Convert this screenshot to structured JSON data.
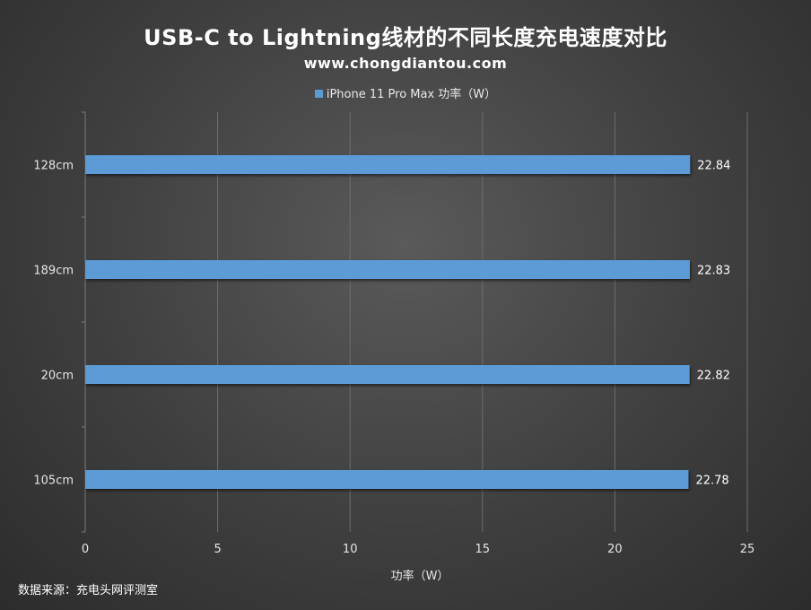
{
  "chart_data": {
    "type": "bar",
    "orientation": "horizontal",
    "title": "USB-C to Lightning线材的不同长度充电速度对比",
    "subtitle": "www.chongdiantou.com",
    "categories": [
      "128cm",
      "189cm",
      "20cm",
      "105cm"
    ],
    "series": [
      {
        "name": "iPhone 11 Pro Max 功率（W）",
        "values": [
          22.84,
          22.83,
          22.82,
          22.78
        ]
      }
    ],
    "xlabel": "功率（W）",
    "ylabel": "",
    "xlim": [
      0,
      25
    ],
    "xticks": [
      "0",
      "5",
      "10",
      "15",
      "20",
      "25"
    ],
    "grid": "vertical",
    "legend_position": "top",
    "data_labels": [
      "22.84",
      "22.83",
      "22.82",
      "22.78"
    ],
    "bar_color": "#5b9bd5"
  },
  "footer": {
    "source": "数据来源：充电头网评测室"
  }
}
